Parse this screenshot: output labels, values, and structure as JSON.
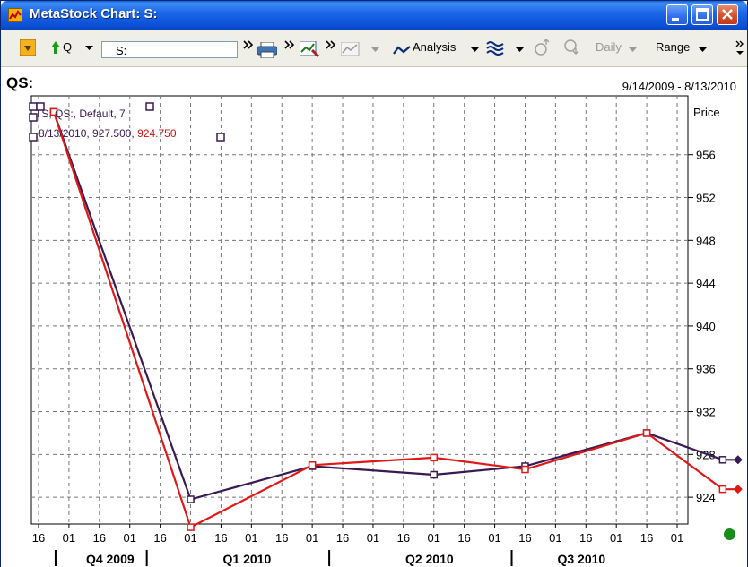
{
  "window": {
    "title": "MetaStock Chart: S:",
    "buttons": [
      "minimize",
      "maximize",
      "close"
    ]
  },
  "toolbar": {
    "quote_label": "Q",
    "symbol_value": "S:",
    "analysis_label": "Analysis",
    "periodicity_label": "Daily",
    "range_label": "Range",
    "overflow_glyph": "»"
  },
  "chart": {
    "symbol_title": "QS:",
    "date_range": "9/14/2009 - 8/13/2010",
    "legend_line1": "TS, QS:, Default,  7",
    "legend_date_value": "8/13/2010, 927.500, ",
    "legend_red_value": "924.750",
    "price_axis_label": "Price",
    "status": "connected",
    "colors": {
      "series_dark": "#3a1a52",
      "series_red": "#e01818",
      "grid": "#777777",
      "status_green": "#1a8c1a"
    }
  },
  "chart_data": {
    "type": "line",
    "title": "QS:",
    "ylabel": "Price",
    "ylim": [
      921.5,
      961.5
    ],
    "y_ticks": [
      924,
      928,
      932,
      936,
      940,
      944,
      948,
      952,
      956
    ],
    "x_tick_labels": [
      "16",
      "01",
      "16",
      "01",
      "16",
      "01",
      "16",
      "01",
      "16",
      "01",
      "16",
      "01",
      "16",
      "01",
      "16",
      "01",
      "16",
      "01",
      "16",
      "01",
      "16",
      "01"
    ],
    "quarters": [
      "Q4 2009",
      "Q1 2010",
      "Q2 2010",
      "Q3 2010"
    ],
    "series": [
      {
        "color": "dark",
        "points": [
          {
            "x": 0.5,
            "y": 960.0
          },
          {
            "x": 5.0,
            "y": 923.8
          },
          {
            "x": 9.0,
            "y": 926.9
          },
          {
            "x": 13.0,
            "y": 926.1
          },
          {
            "x": 16.0,
            "y": 926.9
          },
          {
            "x": 20.0,
            "y": 930.0
          },
          {
            "x": 22.5,
            "y": 927.5
          },
          {
            "x": 23.0,
            "y": 927.5
          }
        ]
      },
      {
        "color": "red",
        "points": [
          {
            "x": 0.5,
            "y": 960.0
          },
          {
            "x": 5.0,
            "y": 921.2
          },
          {
            "x": 9.0,
            "y": 927.0
          },
          {
            "x": 13.0,
            "y": 927.7
          },
          {
            "x": 16.0,
            "y": 926.6
          },
          {
            "x": 20.0,
            "y": 930.0
          },
          {
            "x": 22.5,
            "y": 924.75
          },
          {
            "x": 23.0,
            "y": 924.75
          }
        ]
      }
    ]
  }
}
